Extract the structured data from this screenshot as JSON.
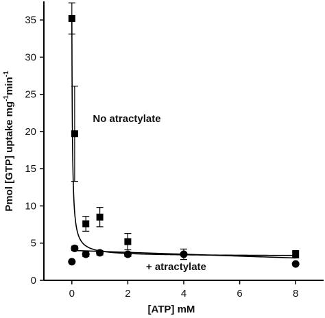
{
  "chart_data": {
    "type": "scatter",
    "title": "",
    "xlabel": "[ATP] mM",
    "ylabel_parts": [
      "Pmol [GTP] uptake mg",
      "-1",
      "min",
      "-1"
    ],
    "xlim": [
      -1,
      9
    ],
    "ylim": [
      0,
      37.5
    ],
    "x_ticks": [
      0,
      2,
      4,
      6,
      8
    ],
    "x_tick_labels": [
      "0",
      "2",
      "4",
      "6",
      "8"
    ],
    "y_ticks": [
      0,
      5,
      10,
      15,
      20,
      25,
      30,
      35
    ],
    "y_tick_labels": [
      "0",
      "5",
      "10",
      "15",
      "20",
      "25",
      "30",
      "35"
    ],
    "grid": false,
    "series": [
      {
        "name": "No atractylate",
        "marker": "square",
        "x": [
          0,
          0.1,
          0.5,
          1,
          2,
          8
        ],
        "y": [
          35.2,
          19.7,
          7.6,
          8.5,
          5.2,
          3.5
        ],
        "err": [
          2.1,
          6.4,
          1.0,
          1.3,
          1.1,
          0.5
        ],
        "fit": {
          "form": "a/(x+b)+c",
          "a": 0.72,
          "b": 0.0225,
          "c": 3.25
        }
      },
      {
        "name": "+ atractylate",
        "marker": "circle",
        "x": [
          0,
          0.1,
          0.5,
          1,
          2,
          4,
          8
        ],
        "y": [
          2.5,
          4.3,
          3.5,
          3.7,
          3.5,
          3.5,
          2.2
        ],
        "err": [
          0,
          0.3,
          0.3,
          0.3,
          0.3,
          0.7,
          0
        ],
        "fit": {
          "form": "line",
          "x": [
            0.1,
            8
          ],
          "y": [
            4.0,
            3.0
          ]
        }
      }
    ],
    "annotations": [
      {
        "text": "No atractylate",
        "x": 0.75,
        "y": 21.3,
        "series": 0
      },
      {
        "text": "+ atractylate",
        "x": 2.65,
        "y": 1.4,
        "series": 1
      }
    ]
  }
}
